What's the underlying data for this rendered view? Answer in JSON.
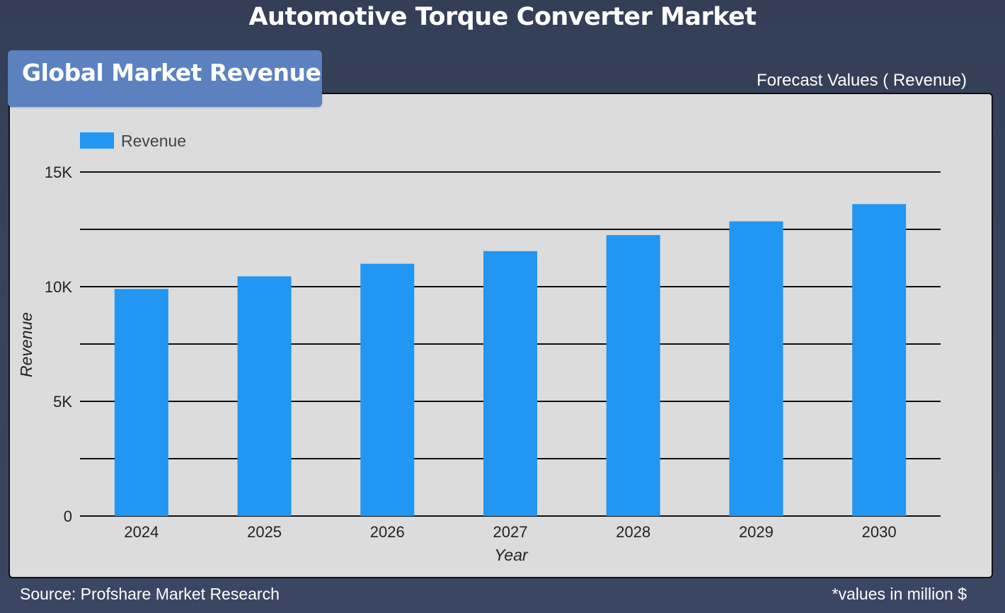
{
  "header": {
    "title": "Automotive Torque Converter Market",
    "badge": "Global Market Revenue",
    "forecast_label": "Forecast Values ( Revenue)"
  },
  "footer": {
    "source": "Source: Profshare Market Research",
    "note": "*values in million $"
  },
  "colors": {
    "bar": "#2196f3",
    "badge": "#5b82bf",
    "background": "#37425b",
    "panel": "#dcdcdc"
  },
  "chart_data": {
    "type": "bar",
    "categories": [
      "2024",
      "2025",
      "2026",
      "2027",
      "2028",
      "2029",
      "2030"
    ],
    "series": [
      {
        "name": "Revenue",
        "values": [
          9900,
          10450,
          11000,
          11550,
          12250,
          12850,
          13600
        ]
      }
    ],
    "xlabel": "Year",
    "ylabel": "Revenue",
    "ylim": [
      0,
      15000
    ],
    "yticks": [
      0,
      5000,
      10000,
      15000
    ],
    "ytick_labels": [
      "0",
      "5K",
      "10K",
      "15K"
    ],
    "grid": true,
    "legend_position": "top-left"
  }
}
